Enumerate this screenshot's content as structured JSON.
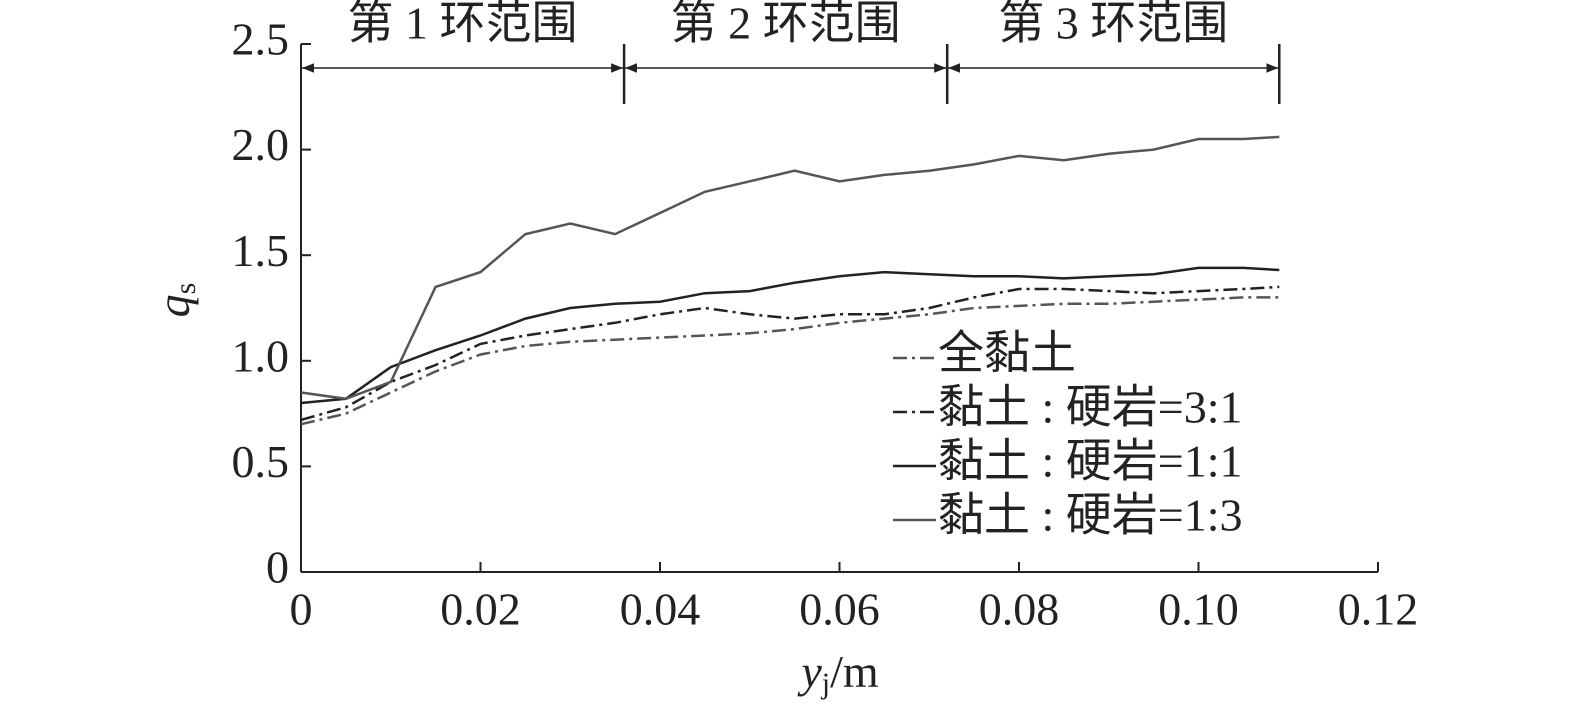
{
  "chart_data": {
    "type": "line",
    "xlabel": {
      "text": "y",
      "subscript": "j",
      "suffix": "/m"
    },
    "ylabel": {
      "text": "q",
      "subscript": "s"
    },
    "x": [
      0,
      0.005,
      0.01,
      0.015,
      0.02,
      0.025,
      0.03,
      0.035,
      0.04,
      0.045,
      0.05,
      0.055,
      0.06,
      0.065,
      0.07,
      0.075,
      0.08,
      0.085,
      0.09,
      0.095,
      0.1,
      0.105,
      0.109
    ],
    "series": [
      {
        "name": "全黏土",
        "color": "#555555",
        "style": "dash-dot",
        "values": [
          0.7,
          0.75,
          0.85,
          0.95,
          1.03,
          1.07,
          1.09,
          1.1,
          1.11,
          1.12,
          1.13,
          1.15,
          1.18,
          1.2,
          1.22,
          1.25,
          1.26,
          1.27,
          1.27,
          1.28,
          1.29,
          1.3,
          1.3
        ]
      },
      {
        "name": "黏土 : 硬岩=3:1",
        "color": "#222222",
        "style": "dash-dot",
        "values": [
          0.72,
          0.78,
          0.9,
          0.98,
          1.08,
          1.12,
          1.15,
          1.18,
          1.22,
          1.25,
          1.22,
          1.2,
          1.22,
          1.22,
          1.25,
          1.3,
          1.34,
          1.34,
          1.33,
          1.32,
          1.33,
          1.34,
          1.35
        ]
      },
      {
        "name": "黏土 : 硬岩=1:1",
        "color": "#222222",
        "style": "solid",
        "values": [
          0.8,
          0.82,
          0.97,
          1.05,
          1.12,
          1.2,
          1.25,
          1.27,
          1.28,
          1.32,
          1.33,
          1.37,
          1.4,
          1.42,
          1.41,
          1.4,
          1.4,
          1.39,
          1.4,
          1.41,
          1.44,
          1.44,
          1.43
        ]
      },
      {
        "name": "黏土 : 硬岩=1:3",
        "color": "#555555",
        "style": "solid",
        "values": [
          0.85,
          0.82,
          0.9,
          1.35,
          1.42,
          1.6,
          1.65,
          1.6,
          1.7,
          1.8,
          1.85,
          1.9,
          1.85,
          1.88,
          1.9,
          1.93,
          1.97,
          1.95,
          1.98,
          2.0,
          2.05,
          2.05,
          2.06
        ]
      }
    ],
    "xlim": [
      0,
      0.12
    ],
    "xticks": [
      0,
      0.02,
      0.04,
      0.06,
      0.08,
      {
        "value": 0.1,
        "label": "0.10"
      },
      0.12
    ],
    "ylim": [
      0,
      2.5
    ],
    "yticks": [
      0,
      0.5,
      {
        "value": 1,
        "label": "1.0"
      },
      1.5,
      {
        "value": 2,
        "label": "2.0"
      },
      2.5
    ],
    "annotations": [
      {
        "text": "第 1 环范围",
        "x": [
          0,
          0.036
        ]
      },
      {
        "text": "第 2 环范围",
        "x": [
          0.036,
          0.072
        ]
      },
      {
        "text": "第 3 环范围",
        "x": [
          0.072,
          0.109
        ]
      }
    ]
  }
}
